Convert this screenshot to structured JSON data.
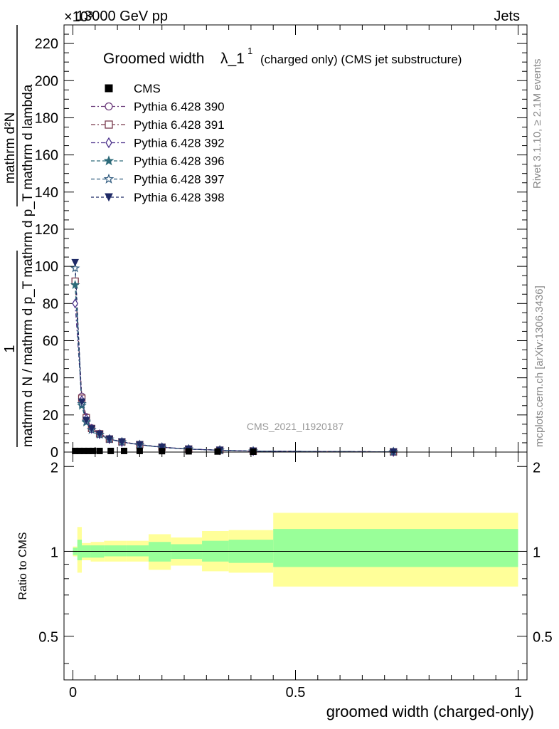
{
  "header": {
    "left": "13000 GeV pp",
    "right": "Jets",
    "exponent": "×10³"
  },
  "side_text": {
    "rivet": "Rivet 3.1.10, ≥ 2.1M events",
    "mcplots": "mcplots.cern.ch [arXiv:1306.3436]"
  },
  "watermark": "CMS_2021_I1920187",
  "chart_data": [
    {
      "type": "line",
      "title_main": "Groomed width",
      "title_sym": "λ_1",
      "title_sup": "1",
      "title_rest": "(charged only) (CMS jet substructure)",
      "ylabel_num": "1",
      "ylabel_den": "mathrm d N / mathrm d p_T mathrm d p_T mathrm d lambda",
      "ylabel_top": "mathrm d²N",
      "ylim": [
        0,
        230
      ],
      "yticks": [
        0,
        20,
        40,
        60,
        80,
        100,
        120,
        140,
        160,
        180,
        200,
        220
      ],
      "xlim": [
        -0.02,
        1.02
      ],
      "legend": [
        "CMS",
        "Pythia 6.428 390",
        "Pythia 6.428 391",
        "Pythia 6.428 392",
        "Pythia 6.428 396",
        "Pythia 6.428 397",
        "Pythia 6.428 398"
      ],
      "legend_position": "top-left",
      "cms": {
        "name": "CMS",
        "x": [
          0.005,
          0.015,
          0.025,
          0.035,
          0.045,
          0.06,
          0.085,
          0.115,
          0.15,
          0.2,
          0.26,
          0.325,
          0.405
        ],
        "y": [
          0.6,
          0.6,
          0.6,
          0.6,
          0.6,
          0.6,
          0.6,
          0.6,
          0.6,
          0.5,
          0.4,
          0.3,
          0.2
        ]
      },
      "series": [
        {
          "name": "Pythia 6.428 390",
          "color": "#6b3a7a",
          "marker": "circle-open",
          "x": [
            0.005,
            0.02,
            0.03,
            0.042,
            0.06,
            0.082,
            0.11,
            0.15,
            0.2,
            0.26,
            0.33,
            0.405,
            0.72
          ],
          "y": [
            92,
            30,
            19,
            13,
            10,
            7.2,
            5.6,
            4.0,
            2.6,
            1.6,
            1.0,
            0.5,
            0.1
          ]
        },
        {
          "name": "Pythia 6.428 391",
          "color": "#7a3b4e",
          "marker": "square-open",
          "x": [
            0.005,
            0.02,
            0.03,
            0.042,
            0.06,
            0.082,
            0.11,
            0.15,
            0.2,
            0.26,
            0.33,
            0.405,
            0.72
          ],
          "y": [
            92,
            29,
            18.5,
            12.7,
            9.8,
            7.0,
            5.5,
            4.0,
            2.6,
            1.6,
            1.0,
            0.5,
            0.1
          ]
        },
        {
          "name": "Pythia 6.428 392",
          "color": "#4a2f8a",
          "marker": "diamond-open",
          "x": [
            0.005,
            0.02,
            0.03,
            0.042,
            0.06,
            0.082,
            0.11,
            0.15,
            0.2,
            0.26,
            0.33,
            0.405,
            0.72
          ],
          "y": [
            80,
            28,
            18,
            12.5,
            9.6,
            7.0,
            5.4,
            3.9,
            2.6,
            1.6,
            1.0,
            0.5,
            0.1
          ]
        },
        {
          "name": "Pythia 6.428 396",
          "color": "#2e6b7a",
          "marker": "star-filled",
          "x": [
            0.005,
            0.02,
            0.03,
            0.042,
            0.06,
            0.082,
            0.11,
            0.15,
            0.2,
            0.26,
            0.33,
            0.405,
            0.72
          ],
          "y": [
            90,
            25,
            16,
            12,
            9.4,
            6.9,
            5.4,
            3.9,
            2.5,
            1.6,
            1.0,
            0.5,
            0.1
          ]
        },
        {
          "name": "Pythia 6.428 397",
          "color": "#2f5a7e",
          "marker": "star-open",
          "x": [
            0.005,
            0.02,
            0.03,
            0.042,
            0.06,
            0.082,
            0.11,
            0.15,
            0.2,
            0.26,
            0.33,
            0.405,
            0.72
          ],
          "y": [
            99,
            26,
            16.5,
            12,
            9.4,
            6.9,
            5.4,
            3.9,
            2.5,
            1.6,
            1.0,
            0.5,
            0.1
          ]
        },
        {
          "name": "Pythia 6.428 398",
          "color": "#1f2a66",
          "marker": "triangle-down-filled",
          "x": [
            0.005,
            0.02,
            0.03,
            0.042,
            0.06,
            0.082,
            0.11,
            0.15,
            0.2,
            0.26,
            0.33,
            0.405,
            0.72
          ],
          "y": [
            102,
            27,
            17,
            12.5,
            9.6,
            7.0,
            5.5,
            4.0,
            2.6,
            1.6,
            1.0,
            0.5,
            0.1
          ]
        }
      ]
    },
    {
      "type": "area",
      "ylabel": "Ratio to CMS",
      "xlabel": "groomed width (charged-only)",
      "xlim": [
        -0.02,
        1.02
      ],
      "ylim": [
        0.35,
        2.25
      ],
      "yticks_labeled": [
        0.5,
        1,
        2
      ],
      "xticks_labeled": [
        "0",
        "0.5",
        "1"
      ],
      "xtick_values": [
        0,
        0.5,
        1
      ],
      "bins": [
        {
          "x0": 0.0,
          "x1": 0.01,
          "inner": [
            0.97,
            1.03
          ],
          "outer": [
            0.96,
            1.04
          ]
        },
        {
          "x0": 0.01,
          "x1": 0.02,
          "inner": [
            0.93,
            1.1
          ],
          "outer": [
            0.84,
            1.22
          ]
        },
        {
          "x0": 0.02,
          "x1": 0.04,
          "inner": [
            0.95,
            1.05
          ],
          "outer": [
            0.93,
            1.07
          ]
        },
        {
          "x0": 0.04,
          "x1": 0.07,
          "inner": [
            0.95,
            1.05
          ],
          "outer": [
            0.92,
            1.08
          ]
        },
        {
          "x0": 0.07,
          "x1": 0.12,
          "inner": [
            0.96,
            1.05
          ],
          "outer": [
            0.92,
            1.09
          ]
        },
        {
          "x0": 0.12,
          "x1": 0.17,
          "inner": [
            0.96,
            1.05
          ],
          "outer": [
            0.92,
            1.09
          ]
        },
        {
          "x0": 0.17,
          "x1": 0.22,
          "inner": [
            0.92,
            1.08
          ],
          "outer": [
            0.86,
            1.15
          ]
        },
        {
          "x0": 0.22,
          "x1": 0.29,
          "inner": [
            0.94,
            1.06
          ],
          "outer": [
            0.89,
            1.12
          ]
        },
        {
          "x0": 0.29,
          "x1": 0.35,
          "inner": [
            0.92,
            1.09
          ],
          "outer": [
            0.85,
            1.18
          ]
        },
        {
          "x0": 0.35,
          "x1": 0.45,
          "inner": [
            0.91,
            1.1
          ],
          "outer": [
            0.84,
            1.19
          ]
        },
        {
          "x0": 0.45,
          "x1": 1.0,
          "inner": [
            0.88,
            1.2
          ],
          "outer": [
            0.75,
            1.37
          ]
        }
      ],
      "colors": {
        "inner": "#99ff99",
        "outer": "#ffff99"
      }
    }
  ]
}
